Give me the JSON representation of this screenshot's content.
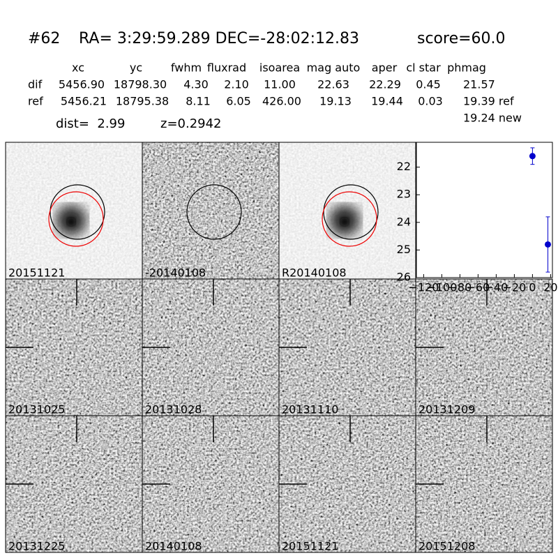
{
  "header": {
    "id": "#62",
    "coords": "RA= 3:29:59.289 DEC=-28:02:12.83",
    "score": "score=60.0"
  },
  "table": {
    "columns": [
      "xc",
      "yc",
      "fwhm",
      "fluxrad",
      "isoarea",
      "mag auto",
      "aper",
      "cl star",
      "phmag"
    ],
    "rows": [
      {
        "label": "dif",
        "cells": [
          "5456.90",
          "18798.30",
          "4.30",
          "2.10",
          "11.00",
          "22.63",
          "22.29",
          "0.45",
          "21.57"
        ]
      },
      {
        "label": "ref",
        "cells": [
          "5456.21",
          "18795.38",
          "8.11",
          "6.05",
          "426.00",
          "19.13",
          "19.44",
          "0.03",
          "19.39 ref"
        ]
      }
    ],
    "new_mag": "19.24 new"
  },
  "dist": "dist=  2.99",
  "z": "z=0.2942",
  "stamps": [
    "20151121",
    "-20140108",
    "R20140108",
    "20131025",
    "20131028",
    "20131110",
    "20131209",
    "20131225",
    "20140108",
    "20151121",
    "20151208"
  ],
  "chart_data": {
    "type": "scatter",
    "x": [
      0,
      17
    ],
    "values": [
      21.6,
      24.8
    ],
    "errors": [
      0.3,
      1.0
    ],
    "color": "#0000cc",
    "xlim": [
      -128,
      22
    ],
    "ylim": [
      21.1,
      26
    ],
    "y_inverted": true,
    "xticks": [
      {
        "value": -120,
        "label": "−120"
      },
      {
        "value": -100,
        "label": "−100"
      },
      {
        "value": -80,
        "label": "−80"
      },
      {
        "value": -60,
        "label": "−60"
      },
      {
        "value": -40,
        "label": "−40"
      },
      {
        "value": -20,
        "label": "−20"
      },
      0,
      20
    ],
    "yticks": [
      22,
      23,
      24,
      25,
      26
    ]
  }
}
